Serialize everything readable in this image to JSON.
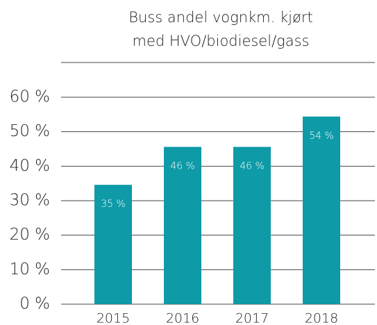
{
  "chart_data": {
    "type": "bar",
    "title": [
      "Buss andel vognkm. kjørt",
      "med HVO/biodiesel/gass"
    ],
    "categories": [
      "2015",
      "2016",
      "2017",
      "2018"
    ],
    "values": [
      34.6,
      45.6,
      45.6,
      54.4
    ],
    "value_labels": [
      "35 %",
      "46 %",
      "46 %",
      "54 %"
    ],
    "color": "#0e9aa7",
    "ylim": [
      0,
      60
    ],
    "yticks": [
      {
        "value": 0,
        "label": "0 %"
      },
      {
        "value": 10,
        "label": "10 %"
      },
      {
        "value": 20,
        "label": "20 %"
      },
      {
        "value": 30,
        "label": "30 %"
      },
      {
        "value": 40,
        "label": "40 %"
      },
      {
        "value": 50,
        "label": "50 %"
      },
      {
        "value": 60,
        "label": "60 %"
      }
    ],
    "grid": true
  }
}
